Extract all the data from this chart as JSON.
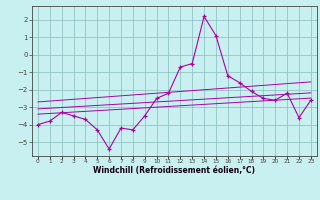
{
  "x": [
    0,
    1,
    2,
    3,
    4,
    5,
    6,
    7,
    8,
    9,
    10,
    11,
    12,
    13,
    14,
    15,
    16,
    17,
    18,
    19,
    20,
    21,
    22,
    23
  ],
  "y_main": [
    -4.0,
    -3.8,
    -3.3,
    -3.5,
    -3.7,
    -4.3,
    -5.4,
    -4.2,
    -4.3,
    -3.5,
    -2.5,
    -2.2,
    -0.7,
    -0.5,
    2.2,
    1.1,
    -1.2,
    -1.6,
    -2.1,
    -2.5,
    -2.6,
    -2.2,
    -3.6,
    -2.6
  ],
  "y_line1": [
    -2.7,
    -2.65,
    -2.6,
    -2.55,
    -2.5,
    -2.45,
    -2.4,
    -2.35,
    -2.3,
    -2.25,
    -2.2,
    -2.15,
    -2.1,
    -2.05,
    -2.0,
    -1.95,
    -1.9,
    -1.85,
    -1.8,
    -1.75,
    -1.7,
    -1.65,
    -1.6,
    -1.55
  ],
  "y_line2": [
    -3.1,
    -3.06,
    -3.02,
    -2.98,
    -2.94,
    -2.9,
    -2.86,
    -2.82,
    -2.78,
    -2.74,
    -2.7,
    -2.66,
    -2.62,
    -2.58,
    -2.54,
    -2.5,
    -2.46,
    -2.42,
    -2.38,
    -2.34,
    -2.3,
    -2.26,
    -2.22,
    -2.18
  ],
  "y_line3": [
    -3.4,
    -3.36,
    -3.32,
    -3.28,
    -3.24,
    -3.2,
    -3.16,
    -3.12,
    -3.08,
    -3.04,
    -3.0,
    -2.96,
    -2.92,
    -2.88,
    -2.84,
    -2.8,
    -2.76,
    -2.72,
    -2.68,
    -2.64,
    -2.6,
    -2.56,
    -2.52,
    -2.48
  ],
  "xlim": [
    -0.5,
    23.5
  ],
  "ylim": [
    -5.8,
    2.8
  ],
  "yticks": [
    -5,
    -4,
    -3,
    -2,
    -1,
    0,
    1,
    2
  ],
  "xtick_labels": [
    "0",
    "1",
    "2",
    "3",
    "4",
    "5",
    "6",
    "7",
    "8",
    "9",
    "10",
    "11",
    "12",
    "13",
    "14",
    "15",
    "16",
    "17",
    "18",
    "19",
    "20",
    "21",
    "22",
    "23"
  ],
  "xlabel": "Windchill (Refroidissement éolien,°C)",
  "line_color": "#aa00aa",
  "bg_color": "#c8f0f0",
  "grid_color": "#88bbbb",
  "axis_color": "#444444",
  "figsize": [
    3.2,
    2.0
  ],
  "dpi": 100
}
